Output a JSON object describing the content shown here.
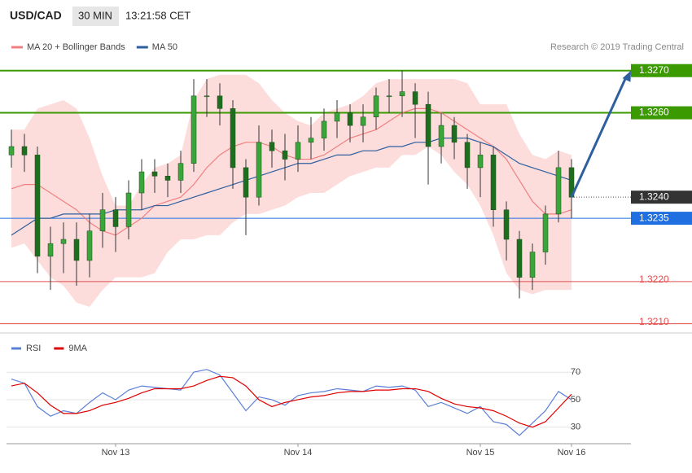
{
  "header": {
    "symbol": "USD/CAD",
    "timeframe": "30 MIN",
    "time": "13:21:58 CET"
  },
  "chart_data": [
    {
      "type": "candlestick",
      "copyright": "Research © 2019 Trading Central",
      "categories": [
        null,
        null,
        null,
        null,
        null,
        null,
        null,
        null,
        "Nov 13",
        null,
        null,
        null,
        null,
        null,
        null,
        null,
        null,
        null,
        null,
        null,
        null,
        null,
        "Nov 14",
        null,
        null,
        null,
        null,
        null,
        null,
        null,
        null,
        null,
        null,
        null,
        null,
        null,
        "Nov 15",
        null,
        null,
        null,
        null,
        null,
        null,
        "Nov 16"
      ],
      "open": [
        1.325,
        1.3252,
        1.325,
        1.3226,
        1.3229,
        1.323,
        1.3225,
        1.3232,
        1.3237,
        1.3233,
        1.3241,
        1.3246,
        1.3245,
        1.3244,
        1.3248,
        1.3264,
        1.3264,
        1.3261,
        1.3247,
        1.324,
        1.3253,
        1.3251,
        1.3249,
        1.3253,
        1.3254,
        1.3258,
        1.326,
        1.3257,
        1.3259,
        1.3264,
        1.3264,
        1.3265,
        1.3262,
        1.3252,
        1.3257,
        1.3253,
        1.3247,
        1.325,
        1.3237,
        1.323,
        1.3221,
        1.3227,
        1.3236,
        1.3247
      ],
      "high": [
        1.3256,
        1.3255,
        1.3252,
        1.3233,
        1.3234,
        1.3234,
        1.3236,
        1.3241,
        1.324,
        1.3244,
        1.3249,
        1.3249,
        1.3248,
        1.3251,
        1.3268,
        1.3268,
        1.3267,
        1.3263,
        1.3249,
        1.3257,
        1.3256,
        1.3255,
        1.3257,
        1.3259,
        1.3261,
        1.3263,
        1.3262,
        1.3262,
        1.3266,
        1.3268,
        1.327,
        1.3267,
        1.3265,
        1.326,
        1.3259,
        1.3255,
        1.3253,
        1.3252,
        1.3239,
        1.3232,
        1.3229,
        1.3238,
        1.3251,
        1.3249
      ],
      "low": [
        1.3247,
        1.3246,
        1.3222,
        1.3218,
        1.3222,
        1.3219,
        1.3221,
        1.3228,
        1.3227,
        1.323,
        1.3237,
        1.3241,
        1.324,
        1.3241,
        1.3246,
        1.3259,
        1.3257,
        1.3242,
        1.3231,
        1.3238,
        1.3247,
        1.3244,
        1.3246,
        1.3249,
        1.3251,
        1.3254,
        1.3253,
        1.3253,
        1.3256,
        1.326,
        1.3259,
        1.3254,
        1.3243,
        1.3248,
        1.3249,
        1.3242,
        1.324,
        1.3233,
        1.3225,
        1.3216,
        1.3218,
        1.3224,
        1.3234,
        1.3235
      ],
      "close": [
        1.3252,
        1.325,
        1.3226,
        1.3229,
        1.323,
        1.3225,
        1.3232,
        1.3237,
        1.3233,
        1.3241,
        1.3246,
        1.3245,
        1.3244,
        1.3248,
        1.3264,
        1.3264,
        1.3261,
        1.3247,
        1.324,
        1.3253,
        1.3251,
        1.3249,
        1.3253,
        1.3254,
        1.3258,
        1.326,
        1.3257,
        1.3259,
        1.3264,
        1.3264,
        1.3265,
        1.3262,
        1.3252,
        1.3257,
        1.3253,
        1.3247,
        1.325,
        1.3237,
        1.323,
        1.3221,
        1.3227,
        1.3236,
        1.3247,
        1.324
      ],
      "up_color": "#3aa63a",
      "down_color": "#1f6e1f",
      "overlays": [
        {
          "name": "MA 20 + Bollinger Bands",
          "color": "#f08080",
          "band_color": "#fcd0d0",
          "values": [
            1.3242,
            1.3243,
            1.3243,
            1.3241,
            1.3239,
            1.3237,
            1.3234,
            1.3232,
            1.3231,
            1.3233,
            1.3235,
            1.3238,
            1.3239,
            1.324,
            1.3243,
            1.3247,
            1.325,
            1.3252,
            1.3253,
            1.3253,
            1.3252,
            1.325,
            1.3249,
            1.3249,
            1.325,
            1.3252,
            1.3254,
            1.3255,
            1.3256,
            1.3258,
            1.326,
            1.3261,
            1.3261,
            1.326,
            1.3258,
            1.3256,
            1.3254,
            1.3252,
            1.3249,
            1.3244,
            1.3239,
            1.3236,
            1.3236,
            1.3237
          ],
          "upper": [
            1.3256,
            1.3256,
            1.3261,
            1.3262,
            1.3263,
            1.3261,
            1.3254,
            1.3245,
            1.3238,
            1.3238,
            1.3243,
            1.3247,
            1.3248,
            1.325,
            1.3263,
            1.3268,
            1.3269,
            1.3269,
            1.3269,
            1.3267,
            1.3263,
            1.326,
            1.3258,
            1.3257,
            1.326,
            1.3261,
            1.3262,
            1.3264,
            1.3267,
            1.3268,
            1.3268,
            1.3268,
            1.3268,
            1.3268,
            1.3268,
            1.3267,
            1.3262,
            1.3262,
            1.3262,
            1.3255,
            1.325,
            1.3249,
            1.3251,
            1.325
          ],
          "lower": [
            1.3228,
            1.3229,
            1.3225,
            1.3221,
            1.3219,
            1.3215,
            1.3214,
            1.3218,
            1.3221,
            1.3221,
            1.3221,
            1.3222,
            1.3227,
            1.323,
            1.323,
            1.3231,
            1.3231,
            1.3234,
            1.3236,
            1.3236,
            1.3237,
            1.3238,
            1.324,
            1.3241,
            1.3241,
            1.3243,
            1.3245,
            1.3246,
            1.3247,
            1.3247,
            1.325,
            1.325,
            1.3252,
            1.325,
            1.3246,
            1.3243,
            1.3238,
            1.3231,
            1.3222,
            1.3218,
            1.3217,
            1.3218,
            1.3218,
            1.3218
          ]
        },
        {
          "name": "MA 50",
          "color": "#2e5f9e",
          "values": [
            1.3231,
            1.3233,
            1.3235,
            1.3235,
            1.3236,
            1.3236,
            1.3236,
            1.3236,
            1.3237,
            1.3237,
            1.3237,
            1.3238,
            1.3238,
            1.3239,
            1.324,
            1.3241,
            1.3242,
            1.3243,
            1.3244,
            1.3245,
            1.3246,
            1.3247,
            1.3248,
            1.3248,
            1.3249,
            1.325,
            1.325,
            1.3251,
            1.3251,
            1.3252,
            1.3252,
            1.3253,
            1.3253,
            1.3254,
            1.3254,
            1.3254,
            1.3253,
            1.3252,
            1.325,
            1.3248,
            1.3247,
            1.3246,
            1.3245,
            1.3244
          ]
        }
      ],
      "ylim": [
        1.3208,
        1.3274
      ],
      "levels": [
        {
          "value": 1.327,
          "label": "1.3270",
          "color": "#3a9a00",
          "style": "solid",
          "boxed": true
        },
        {
          "value": 1.326,
          "label": "1.3260",
          "color": "#3a9a00",
          "style": "solid",
          "boxed": true
        },
        {
          "value": 1.324,
          "label": "1.3240",
          "color": "#333333",
          "style": "dotted",
          "boxed": true
        },
        {
          "value": 1.3235,
          "label": "1.3235",
          "color": "#1f6fe0",
          "style": "solid",
          "boxed": true
        },
        {
          "value": 1.322,
          "label": "1.3220",
          "color": "#e05050",
          "style": "solid",
          "boxed": false
        },
        {
          "value": 1.321,
          "label": "1.3210",
          "color": "#e05050",
          "style": "solid",
          "boxed": false
        }
      ],
      "target_arrow_color": "#2e5f9e"
    },
    {
      "type": "line",
      "series": [
        {
          "name": "RSI",
          "color": "#5b7fd6",
          "values": [
            65,
            62,
            45,
            38,
            42,
            40,
            48,
            55,
            50,
            57,
            60,
            59,
            58,
            57,
            70,
            72,
            68,
            55,
            42,
            52,
            50,
            46,
            53,
            55,
            56,
            58,
            57,
            56,
            60,
            59,
            60,
            57,
            45,
            48,
            44,
            40,
            45,
            34,
            32,
            24,
            33,
            42,
            56,
            50
          ]
        },
        {
          "name": "9MA",
          "color": "#e00000",
          "values": [
            60,
            62,
            55,
            46,
            40,
            40,
            42,
            46,
            48,
            51,
            55,
            58,
            58,
            58,
            60,
            64,
            67,
            66,
            60,
            50,
            45,
            48,
            50,
            52,
            53,
            55,
            56,
            56,
            57,
            57,
            58,
            58,
            56,
            51,
            47,
            45,
            44,
            42,
            38,
            33,
            30,
            34,
            44,
            54
          ]
        }
      ],
      "ylim": [
        18,
        95
      ],
      "yticks": [
        30,
        50,
        70
      ]
    }
  ]
}
